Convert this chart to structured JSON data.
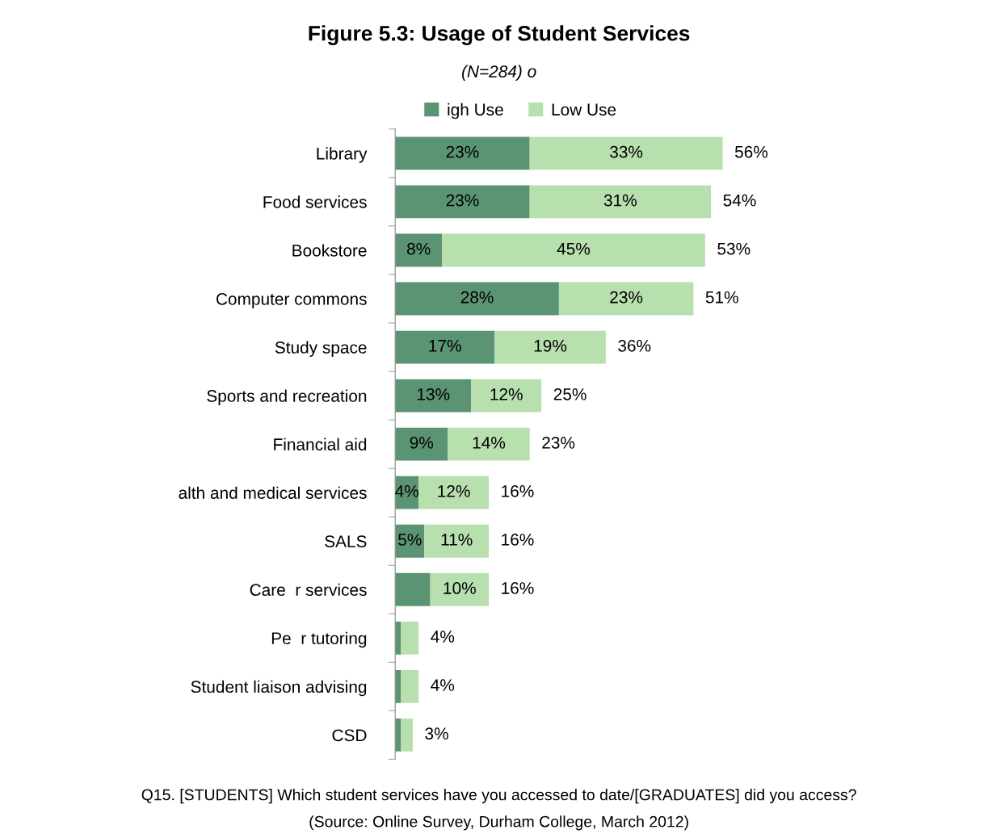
{
  "chart_data": {
    "type": "bar",
    "orientation": "horizontal",
    "stacked": true,
    "title": "Figure 5.3: Usage of Student Services",
    "subtitle": "(N=284) o",
    "categories": [
      "Library",
      "Food services",
      "Bookstore",
      "Computer commons",
      "Study space",
      "Sports and recreation",
      "Financial aid",
      "alth and medical services",
      "SALS",
      "Care  r services",
      "Pe  r tutoring",
      "Student liaison advising",
      "CSD"
    ],
    "series": [
      {
        "name": "igh Use",
        "color": "#5b9472",
        "values": [
          23,
          23,
          8,
          28,
          17,
          13,
          9,
          4,
          5,
          6,
          1,
          1,
          1
        ],
        "value_labels": [
          "23%",
          "23%",
          "8%",
          "28%",
          "17%",
          "13%",
          "9%",
          "4%",
          "5%",
          null,
          null,
          null,
          null
        ]
      },
      {
        "name": "Low Use",
        "color": "#b8dfae",
        "values": [
          33,
          31,
          45,
          23,
          19,
          12,
          14,
          12,
          11,
          10,
          3,
          3,
          2
        ],
        "value_labels": [
          "33%",
          "31%",
          "45%",
          "23%",
          "19%",
          "12%",
          "14%",
          "12%",
          "11%",
          "10%",
          null,
          null,
          null
        ]
      }
    ],
    "totals": [
      "56%",
      "54%",
      "53%",
      "51%",
      "36%",
      "25%",
      "23%",
      "16%",
      "16%",
      "16%",
      "4%",
      "4%",
      "3%"
    ],
    "legend": "top",
    "grid": false,
    "annotations": [
      "Q15. [STUDENTS] Which student services have you accessed to date/[GRADUATES] did you access?",
      "(Source: Online Survey, Durham College, March 2012)"
    ]
  }
}
